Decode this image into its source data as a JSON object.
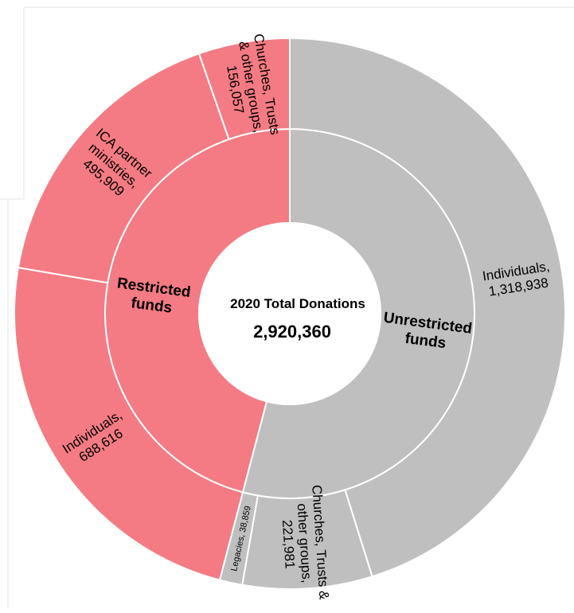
{
  "chart_data": {
    "type": "sunburst",
    "center": {
      "title": "2020 Total Donations",
      "total": "2,920,360"
    },
    "rings": {
      "inner": [
        {
          "name": "Unrestricted funds",
          "label_lines": [
            "Unrestricted",
            "funds"
          ],
          "value": 1579778,
          "color": "#bfbfbf"
        },
        {
          "name": "Restricted funds",
          "label_lines": [
            "Restricted",
            "funds"
          ],
          "value": 1340582,
          "color": "#f47b83"
        }
      ],
      "outer": [
        {
          "parent": "Unrestricted funds",
          "name": "Individuals",
          "value": 1318938,
          "label_lines": [
            "Individuals,",
            "1,318,938"
          ],
          "color": "#bfbfbf"
        },
        {
          "parent": "Unrestricted funds",
          "name": "Churches, Trusts & other groups",
          "value": 221981,
          "label_lines": [
            "Churches, Trusts &",
            "other groups,",
            "221,981"
          ],
          "color": "#bfbfbf"
        },
        {
          "parent": "Unrestricted funds",
          "name": "Legacies",
          "value": 38859,
          "label_lines": [
            "Legacies, 38,859"
          ],
          "color": "#bfbfbf"
        },
        {
          "parent": "Restricted funds",
          "name": "Individuals",
          "value": 688616,
          "label_lines": [
            "Individuals,",
            "688,616"
          ],
          "color": "#f47b83"
        },
        {
          "parent": "Restricted funds",
          "name": "ICA partner ministries",
          "value": 495909,
          "label_lines": [
            "ICA partner",
            "ministries,",
            "495,909"
          ],
          "color": "#f47b83"
        },
        {
          "parent": "Restricted funds",
          "name": "Churches, Trusts & other groups",
          "value": 156057,
          "label_lines": [
            "Churches, Trusts",
            "& other groups,",
            "156,057"
          ],
          "color": "#f47b83"
        }
      ]
    },
    "legend": "none"
  }
}
